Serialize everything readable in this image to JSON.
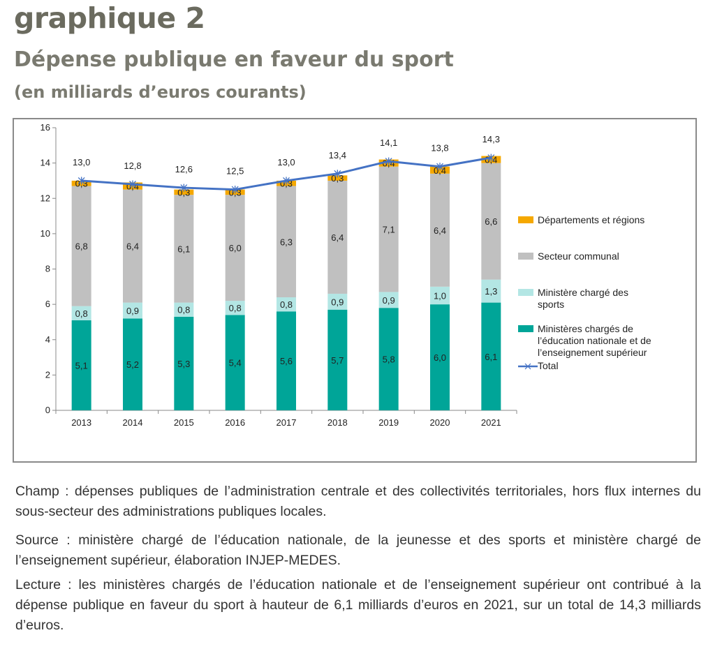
{
  "header": {
    "label": "graphique 2",
    "title": "Dépense publique en faveur du sport",
    "subtitle": "(en milliards d’euros courants)"
  },
  "notes": {
    "champ": "Champ : dépenses publiques de l’administration centrale et des collectivités territoriales, hors flux internes du sous-secteur des administrations publiques locales.",
    "source": "Source : ministère chargé de l’éducation nationale, de la jeunesse et des sports et ministère chargé de l’enseignement supérieur, élaboration INJEP-MEDES.",
    "lecture": "Lecture : les ministères chargés de l’éducation nationale et de l’enseignement supérieur ont contribué à la dépense publique en faveur du sport à hauteur de 6,1 milliards d’euros en 2021, sur un total de 14,3 milliards d’euros."
  },
  "chart_data": {
    "type": "bar",
    "stacked": true,
    "categories": [
      "2013",
      "2014",
      "2015",
      "2016",
      "2017",
      "2018",
      "2019",
      "2020",
      "2021"
    ],
    "ylim": [
      0,
      16
    ],
    "yticks": [
      0,
      2,
      4,
      6,
      8,
      10,
      12,
      14,
      16
    ],
    "grid": false,
    "legend_position": "right",
    "series": [
      {
        "name": "Ministères chargés de l’éducation nationale et de l’enseignement supérieur",
        "color": "#00a598",
        "values": [
          5.1,
          5.2,
          5.3,
          5.4,
          5.6,
          5.7,
          5.8,
          6.0,
          6.1
        ],
        "labels": [
          "5,1",
          "5,2",
          "5,3",
          "5,4",
          "5,6",
          "5,7",
          "5,8",
          "6,0",
          "6,1"
        ]
      },
      {
        "name": "Ministère chargé des sports",
        "color": "#b3e6e4",
        "values": [
          0.8,
          0.9,
          0.8,
          0.8,
          0.8,
          0.9,
          0.9,
          1.0,
          1.3
        ],
        "labels": [
          "0,8",
          "0,9",
          "0,8",
          "0,8",
          "0,8",
          "0,9",
          "0,9",
          "1,0",
          "1,3"
        ]
      },
      {
        "name": "Secteur communal",
        "color": "#c0c0c0",
        "values": [
          6.8,
          6.4,
          6.1,
          6.0,
          6.3,
          6.4,
          7.1,
          6.4,
          6.6
        ],
        "labels": [
          "6,8",
          "6,4",
          "6,1",
          "6,0",
          "6,3",
          "6,4",
          "7,1",
          "6,4",
          "6,6"
        ]
      },
      {
        "name": "Départements et régions",
        "color": "#f5a800",
        "values": [
          0.3,
          0.4,
          0.3,
          0.3,
          0.3,
          0.3,
          0.4,
          0.4,
          0.4
        ],
        "labels": [
          "0,3",
          "0,4",
          "0,3",
          "0,3",
          "0,3",
          "0,3",
          "0,4",
          "0,4",
          "0,4"
        ]
      }
    ],
    "total": {
      "name": "Total",
      "color": "#4472c4",
      "type": "line",
      "values": [
        13.0,
        12.8,
        12.6,
        12.5,
        13.0,
        13.4,
        14.1,
        13.8,
        14.3
      ],
      "labels": [
        "13,0",
        "12,8",
        "12,6",
        "12,5",
        "13,0",
        "13,4",
        "14,1",
        "13,8",
        "14,3"
      ]
    },
    "legend": [
      {
        "label": "Départements et régions",
        "color": "#f5a800",
        "kind": "box"
      },
      {
        "label": "Secteur communal",
        "color": "#c0c0c0",
        "kind": "box"
      },
      {
        "label": "Ministère chargé des sports",
        "color": "#b3e6e4",
        "kind": "box"
      },
      {
        "label": "Ministères chargés de l’éducation nationale et de l’enseignement supérieur",
        "color": "#00a598",
        "kind": "box"
      },
      {
        "label": "Total",
        "color": "#4472c4",
        "kind": "line"
      }
    ]
  }
}
